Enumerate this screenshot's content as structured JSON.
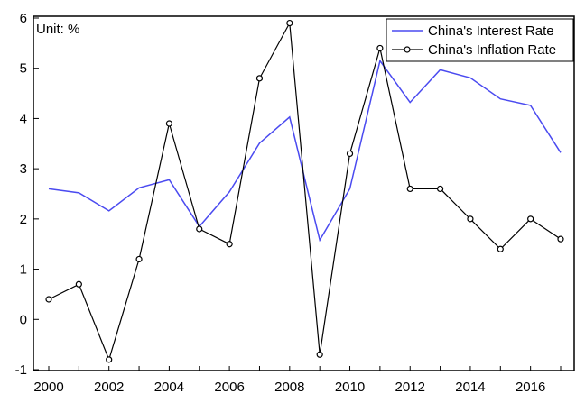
{
  "chart_data": {
    "type": "line",
    "unit_label": "Unit: %",
    "x": [
      2000,
      2001,
      2002,
      2003,
      2004,
      2005,
      2006,
      2007,
      2008,
      2009,
      2010,
      2011,
      2012,
      2013,
      2014,
      2015,
      2016,
      2017
    ],
    "x_tick_labels": [
      "2000",
      "2002",
      "2004",
      "2006",
      "2008",
      "2010",
      "2012",
      "2014",
      "2016"
    ],
    "y_tick_labels": [
      "-1",
      "0",
      "1",
      "2",
      "3",
      "4",
      "5",
      "6"
    ],
    "xlim": [
      2000,
      2017
    ],
    "ylim": [
      -1,
      6
    ],
    "grid": false,
    "legend_position": "top-right",
    "series": [
      {
        "name": "China's Interest Rate",
        "color": "#4a4af0",
        "marker": "none",
        "values": [
          2.6,
          2.52,
          2.16,
          2.62,
          2.78,
          1.85,
          2.54,
          3.51,
          4.03,
          1.58,
          2.6,
          5.15,
          4.32,
          4.97,
          4.81,
          4.39,
          4.26,
          3.32
        ]
      },
      {
        "name": "China's Inflation Rate",
        "color": "#000000",
        "marker": "circle",
        "values": [
          0.4,
          0.7,
          -0.8,
          1.2,
          3.9,
          1.8,
          1.5,
          4.8,
          5.9,
          -0.7,
          3.3,
          5.4,
          2.6,
          2.6,
          2.0,
          1.4,
          2.0,
          1.6
        ]
      }
    ]
  }
}
